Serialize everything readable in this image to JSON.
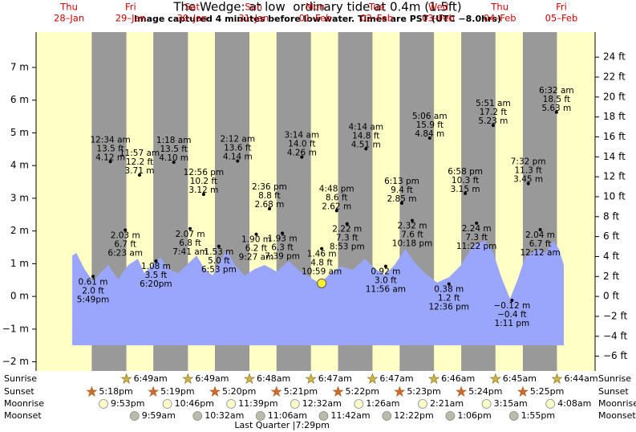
{
  "chart_data": {
    "type": "tide",
    "title": "The Wedge: at low  ordinary tide at 0.4m (1.5ft)",
    "subtitle": "Image captured 4 minutes before low water. Times are PST (UTC −8.0hrs)",
    "current_level_m": 0.4,
    "xlim": [
      -4.4,
      213.6
    ],
    "ylim": [
      -2.28,
      8.08
    ],
    "yticks": [
      {
        "value": 7,
        "label": "7 m"
      },
      {
        "value": 6,
        "label": "6 m"
      },
      {
        "value": 5,
        "label": "5 m"
      },
      {
        "value": 4,
        "label": "4 m"
      },
      {
        "value": 3,
        "label": "3 m"
      },
      {
        "value": 2,
        "label": "2 m"
      },
      {
        "value": 1,
        "label": "1 m"
      },
      {
        "value": 0,
        "label": "0 m"
      },
      {
        "value": -1,
        "label": "−1 m"
      },
      {
        "value": -2,
        "label": "−2 m"
      }
    ],
    "y2lim": [
      -7.48,
      26.51
    ],
    "y2ticks": [
      {
        "value": 24,
        "label": "24 ft"
      },
      {
        "value": 22,
        "label": "22 ft"
      },
      {
        "value": 20,
        "label": "20 ft"
      },
      {
        "value": 18,
        "label": "18 ft"
      },
      {
        "value": 16,
        "label": "16 ft"
      },
      {
        "value": 14,
        "label": "14 ft"
      },
      {
        "value": 12,
        "label": "12 ft"
      },
      {
        "value": 10,
        "label": "10 ft"
      },
      {
        "value": 8,
        "label": "8 ft"
      },
      {
        "value": 6,
        "label": "6 ft"
      },
      {
        "value": 4,
        "label": "4 ft"
      },
      {
        "value": 2,
        "label": "2 ft"
      },
      {
        "value": 0,
        "label": "0 ft"
      },
      {
        "value": -2,
        "label": "−2 ft"
      },
      {
        "value": -4,
        "label": "−4 ft"
      },
      {
        "value": -6,
        "label": "−6 ft"
      }
    ],
    "row_labels": [
      "Sunrise",
      "Sunset",
      "Moonrise",
      "Moonset"
    ],
    "curve": {
      "hours": [
        9.7,
        11.3,
        14.4,
        17.8,
        20.6,
        23.8,
        27.5,
        31.6,
        35.3,
        37.8,
        41.0,
        44.1,
        47.2,
        51.0,
        55.0,
        58.2,
        61.3,
        64.4,
        67.5,
        70.0,
        73.2,
        76.9,
        81.0,
        84.7,
        89.4,
        94.1,
        97.9,
        102.3,
        106.3,
        110.4,
        114.4,
        119.1,
        123.8,
        127.9,
        131.6,
        135.4,
        139.5,
        143.5,
        147.3,
        152.0,
        156.7,
        161.4,
        166.0,
        170.7,
        173.9,
        177.0,
        180.4,
        183.2,
        186.4,
        191.1,
        194.2,
        197.3,
        199.5,
        201.4
      ],
      "values": [
        1.25,
        1.33,
        0.84,
        0.47,
        0.71,
        0.96,
        0.52,
        0.96,
        1.15,
        0.71,
        0.96,
        1.2,
        0.84,
        0.71,
        1.01,
        1.25,
        0.84,
        0.64,
        1.08,
        1.4,
        0.96,
        0.64,
        0.84,
        0.96,
        0.76,
        1.08,
        0.81,
        0.59,
        0.39,
        0.71,
        0.91,
        0.81,
        1.15,
        0.84,
        0.66,
        0.96,
        1.45,
        1.01,
        0.71,
        0.42,
        0.59,
        0.96,
        1.57,
        1.7,
        1.33,
        0.59,
        -0.07,
        0.47,
        1.2,
        1.45,
        1.33,
        1.7,
        1.45,
        0.96
      ]
    },
    "days": [
      {
        "weekday": "Thu",
        "date": "28–Jan",
        "sunset": "5:18pm",
        "moonrise": "9:53pm",
        "times": [
          "5:49pm"
        ],
        "values": [
          0.61
        ],
        "value_labels": [
          "0.61 m"
        ],
        "ft_labels": [
          "2.0 ft"
        ]
      },
      {
        "weekday": "Fri",
        "date": "29–Jan",
        "sunrise": "6:49am",
        "sunset": "5:19pm",
        "moonrise": "10:46pm",
        "moonset": "9:59am",
        "times": [
          "12:34 am",
          "6:23 am",
          "11:57 am",
          "6:20pm"
        ],
        "values": [
          4.12,
          2.03,
          3.71,
          1.08
        ],
        "value_labels": [
          "4.12 m",
          "2.03 m",
          "3.71 m",
          "1.08 m"
        ],
        "ft_labels": [
          "13.5 ft",
          "6.7 ft",
          "12.2 ft",
          "3.5 ft"
        ]
      },
      {
        "weekday": "Sat",
        "date": "30–Jan",
        "sunrise": "6:49am",
        "sunset": "5:20pm",
        "moonrise": "11:39pm",
        "moonset": "10:32am",
        "times": [
          "1:18 am",
          "7:41 am",
          "12:56 pm",
          "6:53 pm"
        ],
        "values": [
          4.1,
          2.07,
          3.12,
          1.53
        ],
        "value_labels": [
          "4.10 m",
          "2.07 m",
          "3.12 m",
          "1.53 m"
        ],
        "ft_labels": [
          "13.5 ft",
          "6.8 ft",
          "10.2 ft",
          "5.0 ft"
        ]
      },
      {
        "weekday": "Sun",
        "date": "31–Jan",
        "sunrise": "6:48am",
        "sunset": "5:21pm",
        "moonset": "11:06am",
        "moon_phase": "Last Quarter |7:29pm",
        "times": [
          "2:12 am",
          "9:27 am",
          "2:36 pm",
          "7:39 pm"
        ],
        "values": [
          4.14,
          1.9,
          2.68,
          1.93
        ],
        "value_labels": [
          "4.14 m",
          "1.90 m",
          "2.68 m",
          "1.93 m"
        ],
        "ft_labels": [
          "13.6 ft",
          "6.2 ft",
          "8.8 ft",
          "6.3 ft"
        ]
      },
      {
        "weekday": "Mon",
        "date": "01–Feb",
        "sunrise": "6:47am",
        "sunset": "5:22pm",
        "moonrise": "12:32am",
        "moonset": "11:42am",
        "times": [
          "3:14 am",
          "10:59 am",
          "4:48 pm",
          "8:53 pm"
        ],
        "values": [
          4.26,
          1.46,
          2.62,
          2.22
        ],
        "value_labels": [
          "4.26 m",
          "1.46 m",
          "2.62 m",
          "2.22 m"
        ],
        "ft_labels": [
          "14.0 ft",
          "4.8 ft",
          "8.6 ft",
          "7.3 ft"
        ]
      },
      {
        "weekday": "Tue",
        "date": "02–Feb",
        "sunrise": "6:47am",
        "sunset": "5:23pm",
        "moonrise": "1:26am",
        "moonset": "12:22pm",
        "times": [
          "4:14 am",
          "11:56 am",
          "6:13 pm",
          "10:18 pm"
        ],
        "values": [
          4.51,
          0.92,
          2.85,
          2.32
        ],
        "value_labels": [
          "4.51 m",
          "0.92 m",
          "2.85 m",
          "2.32 m"
        ],
        "ft_labels": [
          "14.8 ft",
          "3.0 ft",
          "9.4 ft",
          "7.6 ft"
        ]
      },
      {
        "weekday": "Wed",
        "date": "03–Feb",
        "sunrise": "6:46am",
        "sunset": "5:24pm",
        "moonrise": "2:21am",
        "moonset": "1:06pm",
        "times": [
          "5:06 am",
          "12:36 pm",
          "6:58 pm",
          "11:22 pm"
        ],
        "values": [
          4.84,
          0.38,
          3.15,
          2.24
        ],
        "value_labels": [
          "4.84 m",
          "0.38 m",
          "3.15 m",
          "2.24 m"
        ],
        "ft_labels": [
          "15.9 ft",
          "1.2 ft",
          "10.3 ft",
          "7.3 ft"
        ]
      },
      {
        "weekday": "Thu",
        "date": "04–Feb",
        "sunrise": "6:45am",
        "sunset": "5:25pm",
        "moonrise": "3:15am",
        "moonset": "1:55pm",
        "times": [
          "5:51 am",
          "1:11 pm",
          "7:32 pm"
        ],
        "values": [
          5.23,
          -0.12,
          3.45
        ],
        "value_labels": [
          "5.23 m",
          "−0.12 m",
          "3.45 m"
        ],
        "ft_labels": [
          "17.2 ft",
          "−0.4 ft",
          "11.3 ft"
        ]
      },
      {
        "weekday": "Fri",
        "date": "05–Feb",
        "sunrise": "6:44am",
        "moonrise": "4:08am",
        "times": [
          "12:12 am",
          "6:32 am"
        ],
        "values": [
          2.04,
          5.63
        ],
        "value_labels": [
          "2.04 m",
          "5.63 m"
        ],
        "ft_labels": [
          "6.7 ft",
          "18.5 ft"
        ]
      }
    ]
  }
}
